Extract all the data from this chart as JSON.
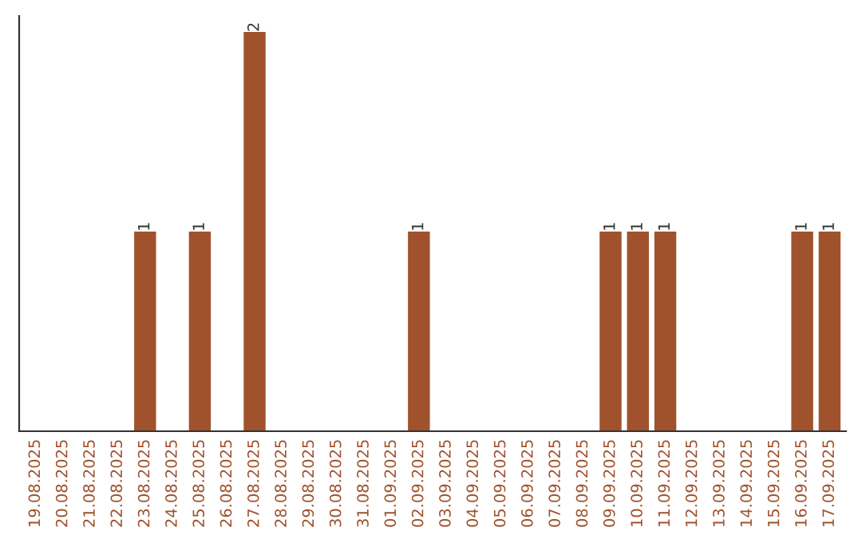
{
  "chart_data": {
    "type": "bar",
    "categories": [
      "19.08.2025",
      "20.08.2025",
      "21.08.2025",
      "22.08.2025",
      "23.08.2025",
      "24.08.2025",
      "25.08.2025",
      "26.08.2025",
      "27.08.2025",
      "28.08.2025",
      "29.08.2025",
      "30.08.2025",
      "31.08.2025",
      "01.09.2025",
      "02.09.2025",
      "03.09.2025",
      "04.09.2025",
      "05.09.2025",
      "06.09.2025",
      "07.09.2025",
      "08.09.2025",
      "09.09.2025",
      "10.09.2025",
      "11.09.2025",
      "12.09.2025",
      "13.09.2025",
      "14.09.2025",
      "15.09.2025",
      "16.09.2025",
      "17.09.2025"
    ],
    "values": [
      0,
      0,
      0,
      0,
      1,
      0,
      1,
      0,
      2,
      0,
      0,
      0,
      0,
      0,
      1,
      0,
      0,
      0,
      0,
      0,
      0,
      1,
      1,
      1,
      0,
      0,
      0,
      0,
      1,
      1
    ],
    "value_labels": [
      null,
      null,
      null,
      null,
      "1",
      null,
      "1",
      null,
      "2",
      null,
      null,
      null,
      null,
      null,
      "1",
      null,
      null,
      null,
      null,
      null,
      null,
      "1",
      "1",
      "1",
      null,
      null,
      null,
      null,
      "1",
      "1"
    ],
    "color": "#a0522d",
    "ylim": [
      0,
      2.08
    ],
    "tick_labels": "x"
  }
}
